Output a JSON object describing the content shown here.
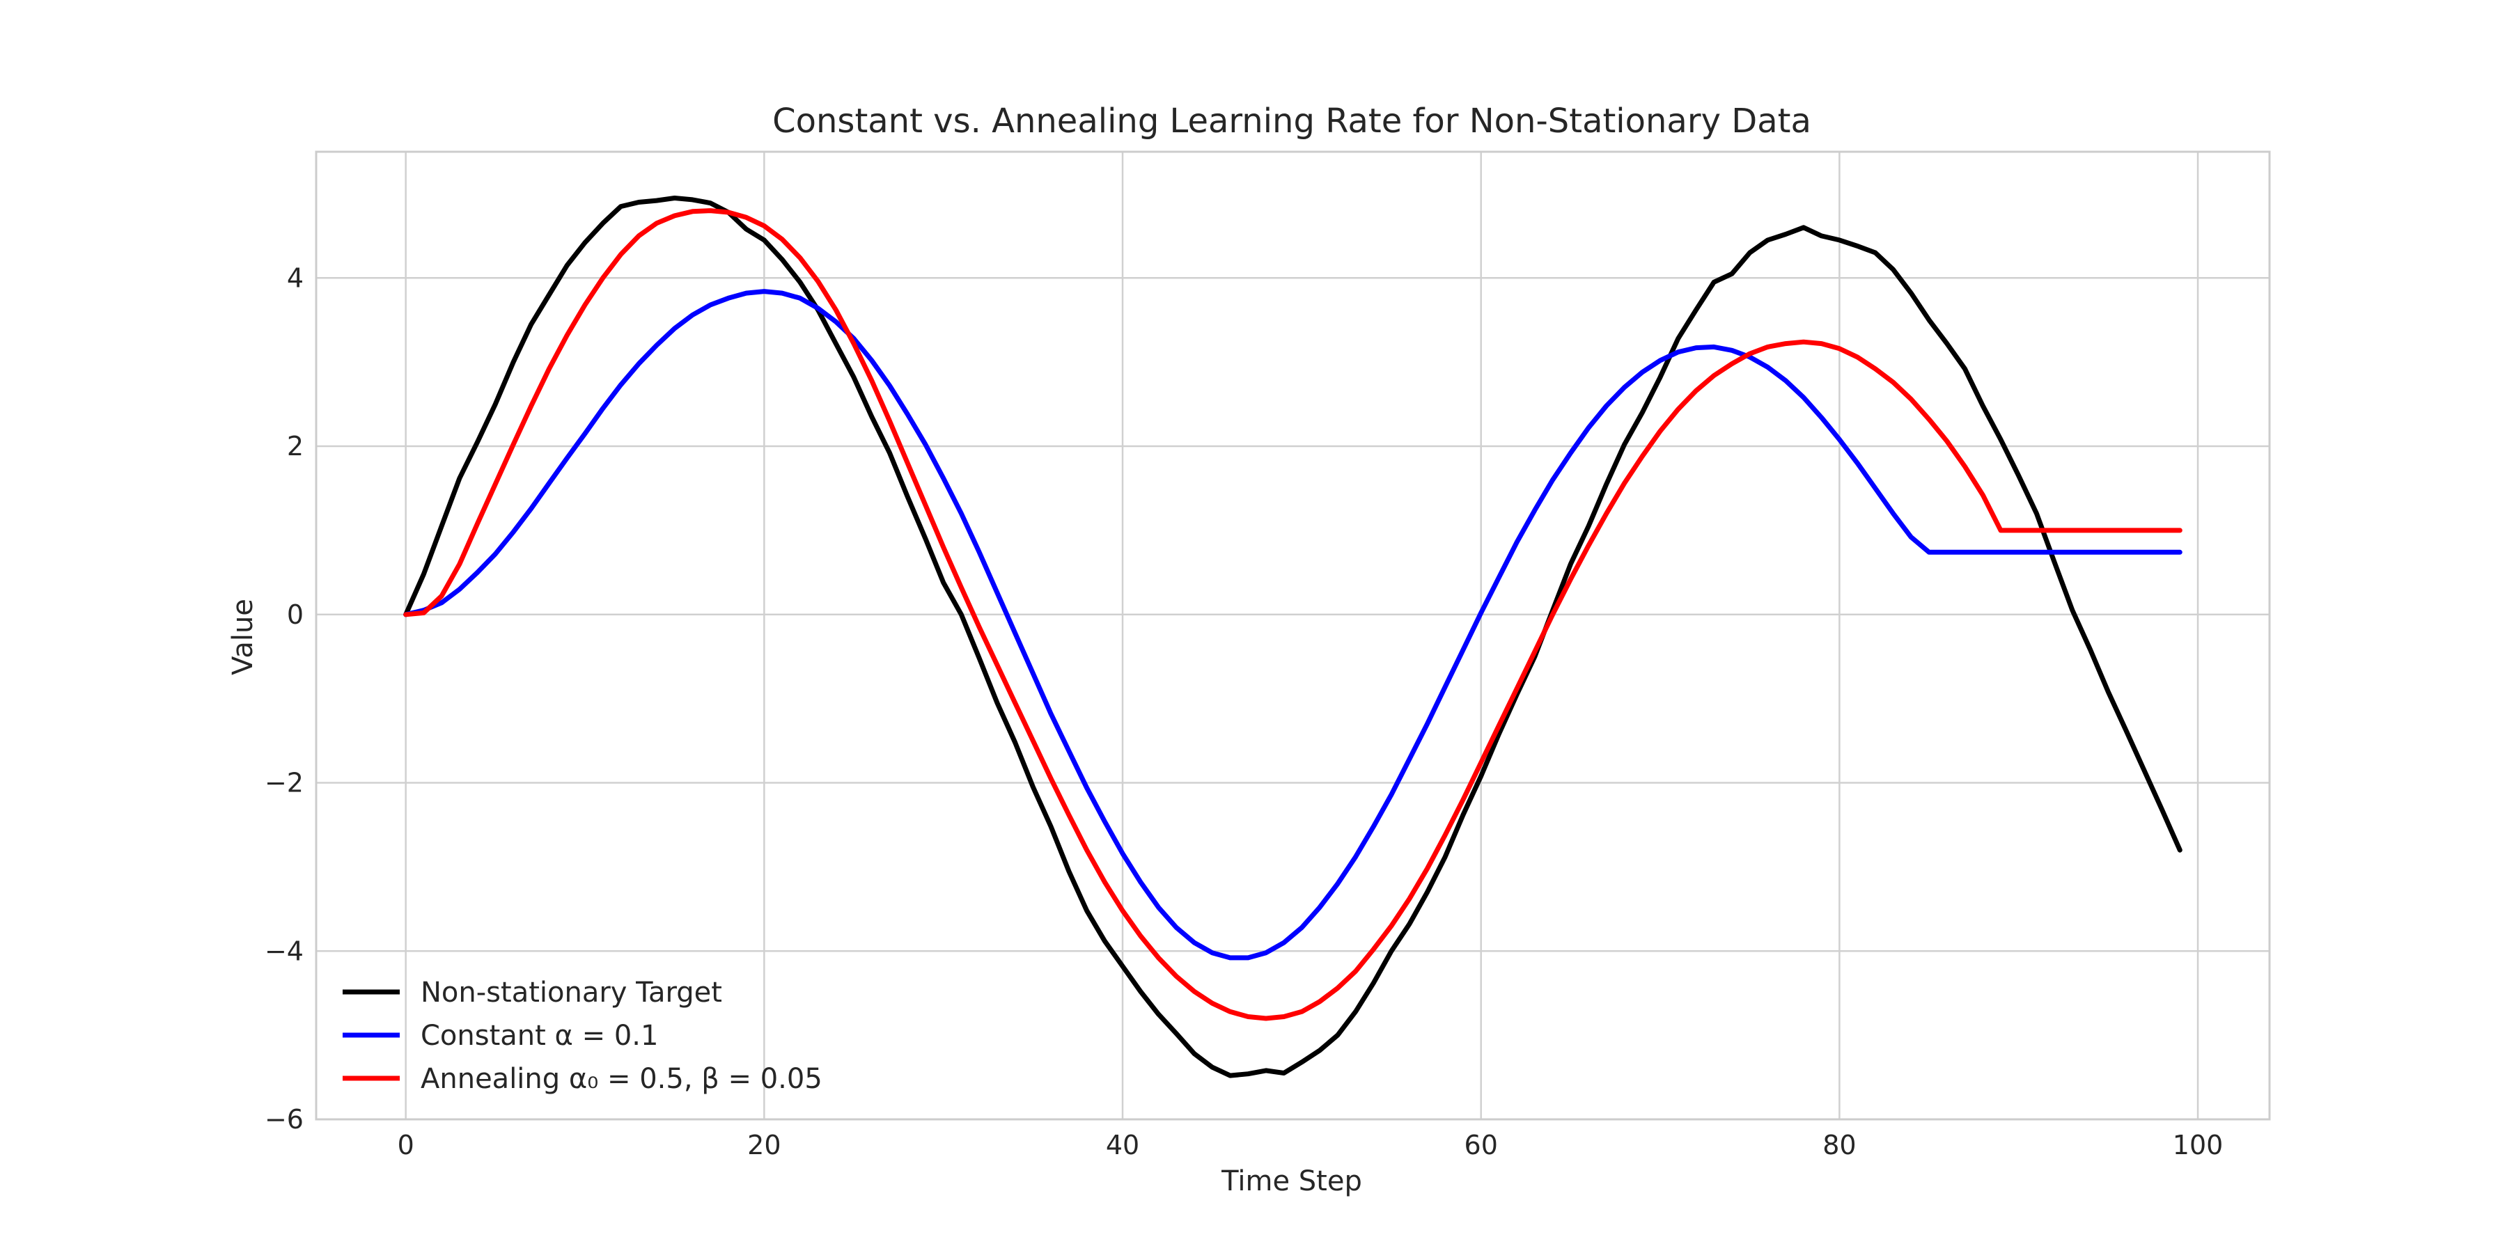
{
  "chart_data": {
    "type": "line",
    "title": "Constant vs. Annealing Learning Rate for Non-Stationary Data",
    "xlabel": "Time Step",
    "ylabel": "Value",
    "xlim": [
      -5,
      104
    ],
    "ylim": [
      -6,
      5.5
    ],
    "grid": true,
    "legend_position": "lower-left",
    "x_ticks": [
      0,
      20,
      40,
      60,
      80,
      100
    ],
    "x_tick_labels": [
      "0",
      "20",
      "40",
      "60",
      "80",
      "100"
    ],
    "y_ticks": [
      -6,
      -4,
      -2,
      0,
      2,
      4
    ],
    "y_tick_labels": [
      "−6",
      "−4",
      "−2",
      "0",
      "2",
      "4"
    ],
    "series": [
      {
        "name": "Non-stationary Target",
        "color": "#000000",
        "x": [
          0,
          1,
          2,
          3,
          4,
          5,
          6,
          7,
          8,
          9,
          10,
          11,
          12,
          13,
          14,
          15,
          16,
          17,
          18,
          19,
          20,
          21,
          22,
          23,
          24,
          25,
          26,
          27,
          28,
          29,
          30,
          31,
          32,
          33,
          34,
          35,
          36,
          37,
          38,
          39,
          40,
          41,
          42,
          43,
          44,
          45,
          46,
          47,
          48,
          49,
          50,
          51,
          52,
          53,
          54,
          55,
          56,
          57,
          58,
          59,
          60,
          61,
          62,
          63,
          64,
          65,
          66,
          67,
          68,
          69,
          70,
          71,
          72,
          73,
          74,
          75,
          76,
          77,
          78,
          79,
          80,
          81,
          82,
          83,
          84,
          85,
          86,
          87,
          88,
          89,
          90,
          91,
          92,
          93,
          94,
          95,
          96,
          97,
          98,
          99
        ],
        "values": [
          0.0,
          0.48,
          1.05,
          1.62,
          2.05,
          2.5,
          3.0,
          3.45,
          3.8,
          4.15,
          4.42,
          4.65,
          4.85,
          4.9,
          4.92,
          4.95,
          4.93,
          4.89,
          4.78,
          4.58,
          4.45,
          4.22,
          3.95,
          3.62,
          3.22,
          2.82,
          2.35,
          1.92,
          1.4,
          0.9,
          0.38,
          0.0,
          -0.52,
          -1.05,
          -1.52,
          -2.05,
          -2.52,
          -3.05,
          -3.52,
          -3.88,
          -4.18,
          -4.48,
          -4.75,
          -4.98,
          -5.22,
          -5.38,
          -5.48,
          -5.46,
          -5.42,
          -5.45,
          -5.32,
          -5.18,
          -5.0,
          -4.72,
          -4.38,
          -4.0,
          -3.68,
          -3.3,
          -2.88,
          -2.38,
          -1.92,
          -1.42,
          -0.95,
          -0.5,
          0.05,
          0.6,
          1.05,
          1.55,
          2.02,
          2.4,
          2.82,
          3.28,
          3.62,
          3.95,
          4.05,
          4.3,
          4.45,
          4.52,
          4.6,
          4.5,
          4.45,
          4.38,
          4.3,
          4.1,
          3.82,
          3.5,
          3.22,
          2.92,
          2.48,
          2.08,
          1.65,
          1.2,
          0.62,
          0.05,
          -0.42,
          -0.92,
          -1.38,
          -1.85,
          -2.32,
          -2.8
        ]
      },
      {
        "name": "Constant α = 0.1",
        "color": "#0000ff",
        "x": [
          0,
          1,
          2,
          3,
          4,
          5,
          6,
          7,
          8,
          9,
          10,
          11,
          12,
          13,
          14,
          15,
          16,
          17,
          18,
          19,
          20,
          21,
          22,
          23,
          24,
          25,
          26,
          27,
          28,
          29,
          30,
          31,
          32,
          33,
          34,
          35,
          36,
          37,
          38,
          39,
          40,
          41,
          42,
          43,
          44,
          45,
          46,
          47,
          48,
          49,
          50,
          51,
          52,
          53,
          54,
          55,
          56,
          57,
          58,
          59,
          60,
          61,
          62,
          63,
          64,
          65,
          66,
          67,
          68,
          69,
          70,
          71,
          72,
          73,
          74,
          75,
          76,
          77,
          78,
          79,
          80,
          81,
          82,
          83,
          84,
          85,
          86,
          87,
          88,
          89,
          90,
          91,
          92,
          93,
          94,
          95,
          96,
          97,
          98,
          99
        ],
        "values": [
          0.0,
          0.05,
          0.14,
          0.3,
          0.5,
          0.72,
          0.98,
          1.26,
          1.56,
          1.86,
          2.15,
          2.45,
          2.73,
          2.98,
          3.2,
          3.4,
          3.56,
          3.68,
          3.76,
          3.82,
          3.84,
          3.82,
          3.76,
          3.64,
          3.48,
          3.28,
          3.02,
          2.72,
          2.38,
          2.02,
          1.62,
          1.2,
          0.74,
          0.26,
          -0.22,
          -0.7,
          -1.18,
          -1.62,
          -2.06,
          -2.46,
          -2.84,
          -3.18,
          -3.48,
          -3.72,
          -3.9,
          -4.02,
          -4.08,
          -4.08,
          -4.02,
          -3.9,
          -3.72,
          -3.48,
          -3.2,
          -2.88,
          -2.52,
          -2.14,
          -1.72,
          -1.3,
          -0.86,
          -0.42,
          0.02,
          0.44,
          0.86,
          1.24,
          1.6,
          1.92,
          2.22,
          2.48,
          2.7,
          2.88,
          3.02,
          3.12,
          3.17,
          3.18,
          3.14,
          3.06,
          2.94,
          2.78,
          2.58,
          2.34,
          2.08,
          1.8,
          1.5,
          1.2,
          0.92,
          0.74,
          0.74,
          0.74,
          0.74,
          0.74,
          0.74,
          0.74,
          0.74,
          0.74,
          0.74,
          0.74,
          0.74,
          0.74,
          0.74,
          0.74
        ]
      },
      {
        "name": "Annealing α₀ = 0.5, β = 0.05",
        "color": "#ff0000",
        "x": [
          0,
          1,
          2,
          3,
          4,
          5,
          6,
          7,
          8,
          9,
          10,
          11,
          12,
          13,
          14,
          15,
          16,
          17,
          18,
          19,
          20,
          21,
          22,
          23,
          24,
          25,
          26,
          27,
          28,
          29,
          30,
          31,
          32,
          33,
          34,
          35,
          36,
          37,
          38,
          39,
          40,
          41,
          42,
          43,
          44,
          45,
          46,
          47,
          48,
          49,
          50,
          51,
          52,
          53,
          54,
          55,
          56,
          57,
          58,
          59,
          60,
          61,
          62,
          63,
          64,
          65,
          66,
          67,
          68,
          69,
          70,
          71,
          72,
          73,
          74,
          75,
          76,
          77,
          78,
          79,
          80,
          81,
          82,
          83,
          84,
          85,
          86,
          87,
          88,
          89,
          90,
          91,
          92,
          93,
          94,
          95,
          96,
          97,
          98,
          99
        ],
        "values": [
          0.0,
          0.02,
          0.22,
          0.6,
          1.08,
          1.55,
          2.02,
          2.48,
          2.92,
          3.32,
          3.68,
          4.0,
          4.28,
          4.5,
          4.65,
          4.74,
          4.79,
          4.8,
          4.78,
          4.72,
          4.62,
          4.46,
          4.24,
          3.96,
          3.62,
          3.22,
          2.78,
          2.3,
          1.8,
          1.3,
          0.8,
          0.32,
          -0.15,
          -0.6,
          -1.05,
          -1.5,
          -1.95,
          -2.38,
          -2.8,
          -3.18,
          -3.52,
          -3.82,
          -4.08,
          -4.3,
          -4.48,
          -4.62,
          -4.72,
          -4.78,
          -4.8,
          -4.78,
          -4.72,
          -4.6,
          -4.44,
          -4.24,
          -3.98,
          -3.7,
          -3.38,
          -3.02,
          -2.62,
          -2.2,
          -1.76,
          -1.32,
          -0.88,
          -0.44,
          0.0,
          0.42,
          0.82,
          1.2,
          1.56,
          1.88,
          2.18,
          2.44,
          2.66,
          2.84,
          2.98,
          3.1,
          3.18,
          3.22,
          3.24,
          3.22,
          3.16,
          3.06,
          2.92,
          2.76,
          2.56,
          2.32,
          2.06,
          1.76,
          1.42,
          1.0,
          1.0,
          1.0,
          1.0,
          1.0,
          1.0,
          1.0,
          1.0,
          1.0,
          1.0,
          1.0
        ]
      }
    ]
  }
}
